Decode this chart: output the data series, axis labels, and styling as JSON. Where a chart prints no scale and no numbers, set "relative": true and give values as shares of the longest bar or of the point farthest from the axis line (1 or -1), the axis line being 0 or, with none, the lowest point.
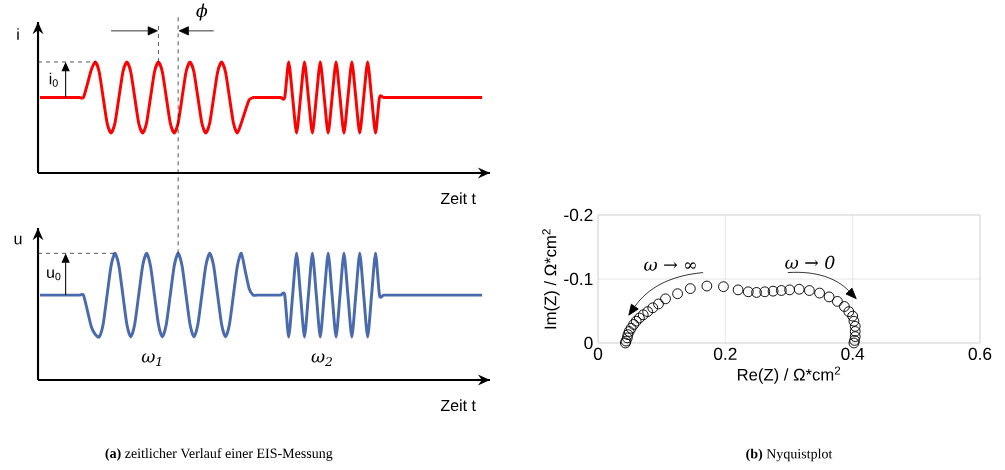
{
  "chart_data": [
    {
      "type": "line",
      "relative": true,
      "ylabel": "i",
      "xlabel": "Zeit t",
      "marker": "none",
      "line_style": "solid",
      "categories": [
        null,
        null,
        null,
        null,
        null,
        null,
        null,
        null,
        null,
        null,
        null,
        null,
        null,
        null,
        null,
        null,
        null,
        null,
        null,
        null,
        null,
        null,
        null,
        null,
        null,
        null,
        null,
        null,
        null,
        null,
        null,
        null,
        null,
        null,
        null,
        null,
        null,
        null,
        null,
        null,
        null,
        null,
        null,
        null,
        null,
        null,
        null,
        null,
        null,
        null,
        null,
        null,
        null,
        null,
        null,
        null,
        null,
        null,
        null,
        null,
        null,
        null,
        null,
        null,
        null,
        null,
        null,
        null,
        null,
        null,
        null,
        null,
        null,
        null,
        null,
        null,
        null,
        null,
        null,
        null,
        null,
        null,
        null,
        null,
        null,
        null,
        null,
        null,
        null,
        null,
        null,
        null,
        null,
        null,
        null,
        null,
        null,
        null,
        null,
        null,
        null,
        null,
        null,
        null,
        null,
        null,
        null,
        null,
        null,
        null,
        null,
        null,
        null
      ],
      "series": [
        {
          "color": "#ff0000",
          "values": [
            0.68,
            0.68,
            0.68,
            0.68,
            0.68,
            0.68,
            0.68,
            0.68,
            0.68,
            0.68,
            0.68,
            0.68,
            0.8,
            0.93,
            1,
            0.91,
            0.68,
            0.45,
            0.36,
            0.45,
            0.68,
            0.91,
            1,
            0.91,
            0.68,
            0.45,
            0.36,
            0.45,
            0.68,
            0.91,
            1,
            0.91,
            0.68,
            0.45,
            0.36,
            0.45,
            0.68,
            0.91,
            1,
            0.91,
            0.68,
            0.45,
            0.36,
            0.45,
            0.68,
            0.91,
            1,
            0.91,
            0.68,
            0.45,
            0.36,
            0.45,
            0.56,
            0.66,
            0.68,
            0.68,
            0.68,
            0.68,
            0.68,
            0.68,
            0.68,
            0.68,
            0.68,
            1,
            0.68,
            0.36,
            0.68,
            1,
            0.68,
            0.36,
            0.68,
            1,
            0.68,
            0.36,
            0.68,
            1,
            0.68,
            0.36,
            0.68,
            1,
            0.68,
            0.36,
            0.68,
            1,
            0.68,
            0.36,
            0.68,
            0.68,
            0.68,
            0.68,
            0.68,
            0.68,
            0.68,
            0.68,
            0.68,
            0.68,
            0.68,
            0.68,
            0.68,
            0.68,
            0.68,
            0.68,
            0.68,
            0.68,
            0.68,
            0.68,
            0.68,
            0.68,
            0.68,
            0.68,
            0.68,
            0.68,
            0.68
          ]
        }
      ],
      "annotations": [
        "i$_{0}$",
        "ϕ"
      ]
    },
    {
      "type": "line",
      "relative": true,
      "ylabel": "u",
      "xlabel": "Zeit t",
      "marker": "none",
      "line_style": "solid",
      "categories": [
        null,
        null,
        null,
        null,
        null,
        null,
        null,
        null,
        null,
        null,
        null,
        null,
        null,
        null,
        null,
        null,
        null,
        null,
        null,
        null,
        null,
        null,
        null,
        null,
        null,
        null,
        null,
        null,
        null,
        null,
        null,
        null,
        null,
        null,
        null,
        null,
        null,
        null,
        null,
        null,
        null,
        null,
        null,
        null,
        null,
        null,
        null,
        null,
        null,
        null,
        null,
        null,
        null,
        null,
        null,
        null,
        null,
        null,
        null,
        null,
        null,
        null,
        null,
        null,
        null,
        null,
        null,
        null,
        null,
        null,
        null,
        null,
        null,
        null,
        null,
        null,
        null,
        null,
        null,
        null,
        null,
        null,
        null,
        null,
        null,
        null,
        null,
        null,
        null,
        null,
        null,
        null,
        null,
        null,
        null,
        null,
        null,
        null,
        null,
        null,
        null,
        null,
        null,
        null,
        null,
        null,
        null,
        null,
        null,
        null,
        null,
        null,
        null
      ],
      "series": [
        {
          "color": "#4a6aae",
          "values": [
            0.67,
            0.67,
            0.67,
            0.67,
            0.67,
            0.67,
            0.67,
            0.67,
            0.67,
            0.67,
            0.67,
            0.67,
            0.55,
            0.42,
            0.36,
            0.34,
            0.44,
            0.67,
            0.9,
            1,
            0.9,
            0.67,
            0.44,
            0.34,
            0.44,
            0.67,
            0.9,
            1,
            0.9,
            0.67,
            0.44,
            0.34,
            0.44,
            0.67,
            0.9,
            1,
            0.9,
            0.67,
            0.44,
            0.34,
            0.44,
            0.67,
            0.9,
            1,
            0.9,
            0.67,
            0.44,
            0.34,
            0.44,
            0.67,
            0.9,
            1,
            0.86,
            0.72,
            0.67,
            0.67,
            0.67,
            0.67,
            0.67,
            0.67,
            0.67,
            0.67,
            0.67,
            0.34,
            0.67,
            1,
            0.67,
            0.34,
            0.67,
            1,
            0.67,
            0.34,
            0.67,
            1,
            0.67,
            0.34,
            0.67,
            1,
            0.67,
            0.34,
            0.67,
            1,
            0.67,
            0.34,
            0.67,
            1,
            0.67,
            0.67,
            0.67,
            0.67,
            0.67,
            0.67,
            0.67,
            0.67,
            0.67,
            0.67,
            0.67,
            0.67,
            0.67,
            0.67,
            0.67,
            0.67,
            0.67,
            0.67,
            0.67,
            0.67,
            0.67,
            0.67,
            0.67,
            0.67,
            0.67,
            0.67,
            0.67
          ]
        }
      ],
      "annotations": [
        "u$_{0}$",
        "ω$_{1}$",
        "ω$_{2}$",
        "**(a)** zeitlicher Verlauf einer EIS-Messung"
      ]
    },
    {
      "type": "scatter",
      "xlabel": "Re(Z) / Ω*cm$^{2}$",
      "ylabel": "Im(Z) / Ω*cm$^{2}$",
      "marker": "circle",
      "grid": true,
      "xlim": [
        0,
        0.6
      ],
      "xticks": [
        0,
        0.2,
        0.4,
        0.6
      ],
      "ylim": [
        0,
        -0.2
      ],
      "yticks": [
        0,
        -0.1,
        -0.2
      ],
      "series": [
        {
          "color": "#000000",
          "x": [
            0.043,
            0.044,
            0.046,
            0.047,
            0.049,
            0.052,
            0.056,
            0.06,
            0.065,
            0.071,
            0.078,
            0.086,
            0.095,
            0.106,
            0.125,
            0.145,
            0.171,
            0.197,
            0.22,
            0.236,
            0.249,
            0.262,
            0.275,
            0.288,
            0.301,
            0.316,
            0.332,
            0.348,
            0.363,
            0.376,
            0.387,
            0.394,
            0.4,
            0.402,
            0.404,
            0.404,
            0.404,
            0.403,
            0.402
          ],
          "values": [
            0,
            -0.003,
            -0.008,
            -0.013,
            -0.018,
            -0.023,
            -0.029,
            -0.034,
            -0.039,
            -0.044,
            -0.049,
            -0.055,
            -0.061,
            -0.069,
            -0.077,
            -0.085,
            -0.089,
            -0.088,
            -0.083,
            -0.08,
            -0.079,
            -0.08,
            -0.081,
            -0.082,
            -0.083,
            -0.084,
            -0.082,
            -0.078,
            -0.072,
            -0.065,
            -0.057,
            -0.049,
            -0.042,
            -0.034,
            -0.026,
            -0.018,
            -0.01,
            -0.004,
            0
          ]
        }
      ],
      "annotations": [
        "ω → ∞",
        "ω → 0",
        "**(b)** Nyquistplot"
      ]
    }
  ]
}
